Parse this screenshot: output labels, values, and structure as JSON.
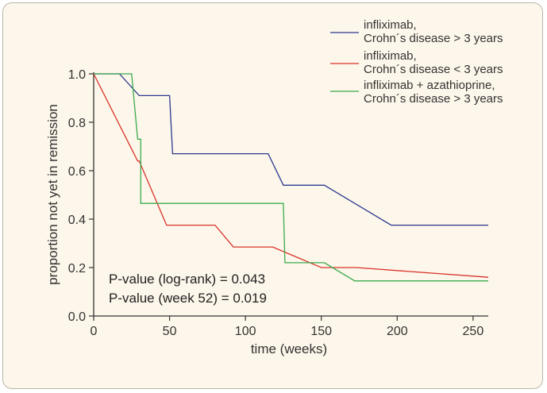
{
  "chart_data": {
    "type": "line",
    "step": true,
    "xlabel": "time (weeks)",
    "ylabel": "proportion not yet in remission",
    "xlim": [
      0,
      260
    ],
    "ylim": [
      0,
      1.0
    ],
    "xticks": [
      0,
      50,
      100,
      150,
      200,
      250
    ],
    "yticks": [
      0.0,
      0.2,
      0.4,
      0.6,
      0.8,
      1.0
    ],
    "xtick_labels": [
      "0",
      "50",
      "100",
      "150",
      "200",
      "250"
    ],
    "ytick_labels": [
      "0.0",
      "0.2",
      "0.4",
      "0.6",
      "0.8",
      "1.0"
    ],
    "grid": false,
    "legend_position": "top-right",
    "series": [
      {
        "name_line1": "infliximab,",
        "name_line2": "Crohn´s disease > 3 years",
        "color": "#2b3a8f",
        "points": [
          [
            0,
            1.0
          ],
          [
            17,
            1.0
          ],
          [
            30,
            0.91
          ],
          [
            50,
            0.91
          ],
          [
            52,
            0.67
          ],
          [
            115,
            0.67
          ],
          [
            125,
            0.54
          ],
          [
            152,
            0.54
          ],
          [
            196,
            0.375
          ],
          [
            260,
            0.375
          ]
        ]
      },
      {
        "name_line1": "infliximab,",
        "name_line2": "Crohn´s disease < 3 years",
        "color": "#d9342b",
        "points": [
          [
            0,
            1.0
          ],
          [
            29,
            0.64
          ],
          [
            30,
            0.64
          ],
          [
            48,
            0.375
          ],
          [
            80,
            0.375
          ],
          [
            92,
            0.285
          ],
          [
            118,
            0.285
          ],
          [
            150,
            0.2
          ],
          [
            173,
            0.2
          ],
          [
            260,
            0.16
          ]
        ]
      },
      {
        "name_line1": "infliximab + azathioprine,",
        "name_line2": "Crohn´s disease > 3 years",
        "color": "#3aaa4e",
        "points": [
          [
            0,
            1.0
          ],
          [
            25,
            1.0
          ],
          [
            29,
            0.73
          ],
          [
            31,
            0.73
          ],
          [
            31,
            0.465
          ],
          [
            125,
            0.465
          ],
          [
            126,
            0.22
          ],
          [
            152,
            0.22
          ],
          [
            172,
            0.145
          ],
          [
            260,
            0.145
          ]
        ]
      }
    ],
    "annotations": [
      "P-value (log-rank) = 0.043",
      "P-value (week 52) = 0.019"
    ]
  }
}
